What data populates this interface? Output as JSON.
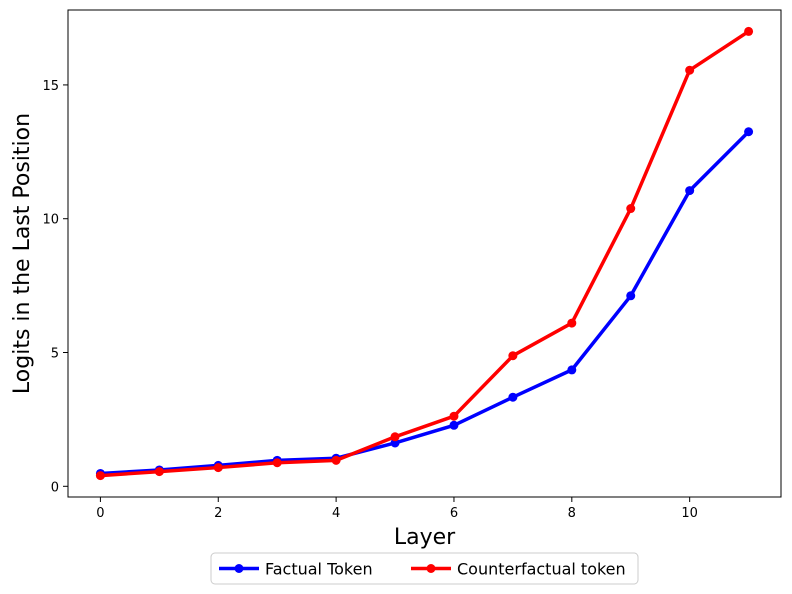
{
  "chart_data": {
    "type": "line",
    "title": "",
    "xlabel": "Layer",
    "ylabel": "Logits in the Last Position",
    "x": [
      0,
      1,
      2,
      3,
      4,
      5,
      6,
      7,
      8,
      9,
      10,
      11
    ],
    "xlim": [
      -0.55,
      11.55
    ],
    "ylim": [
      -0.4,
      17.8
    ],
    "xticks": [
      0,
      2,
      4,
      6,
      8,
      10
    ],
    "yticks": [
      0,
      5,
      10,
      15
    ],
    "grid": false,
    "legend_position": "bottom-center",
    "series": [
      {
        "name": "Factual Token",
        "color": "#0000ff",
        "values": [
          0.48,
          0.61,
          0.78,
          0.97,
          1.05,
          1.62,
          2.28,
          3.33,
          4.35,
          7.12,
          11.05,
          13.25
        ]
      },
      {
        "name": "Counterfactual token",
        "color": "#ff0000",
        "values": [
          0.4,
          0.55,
          0.7,
          0.88,
          0.97,
          1.85,
          2.62,
          4.88,
          6.1,
          10.38,
          15.55,
          17.0
        ]
      }
    ]
  }
}
